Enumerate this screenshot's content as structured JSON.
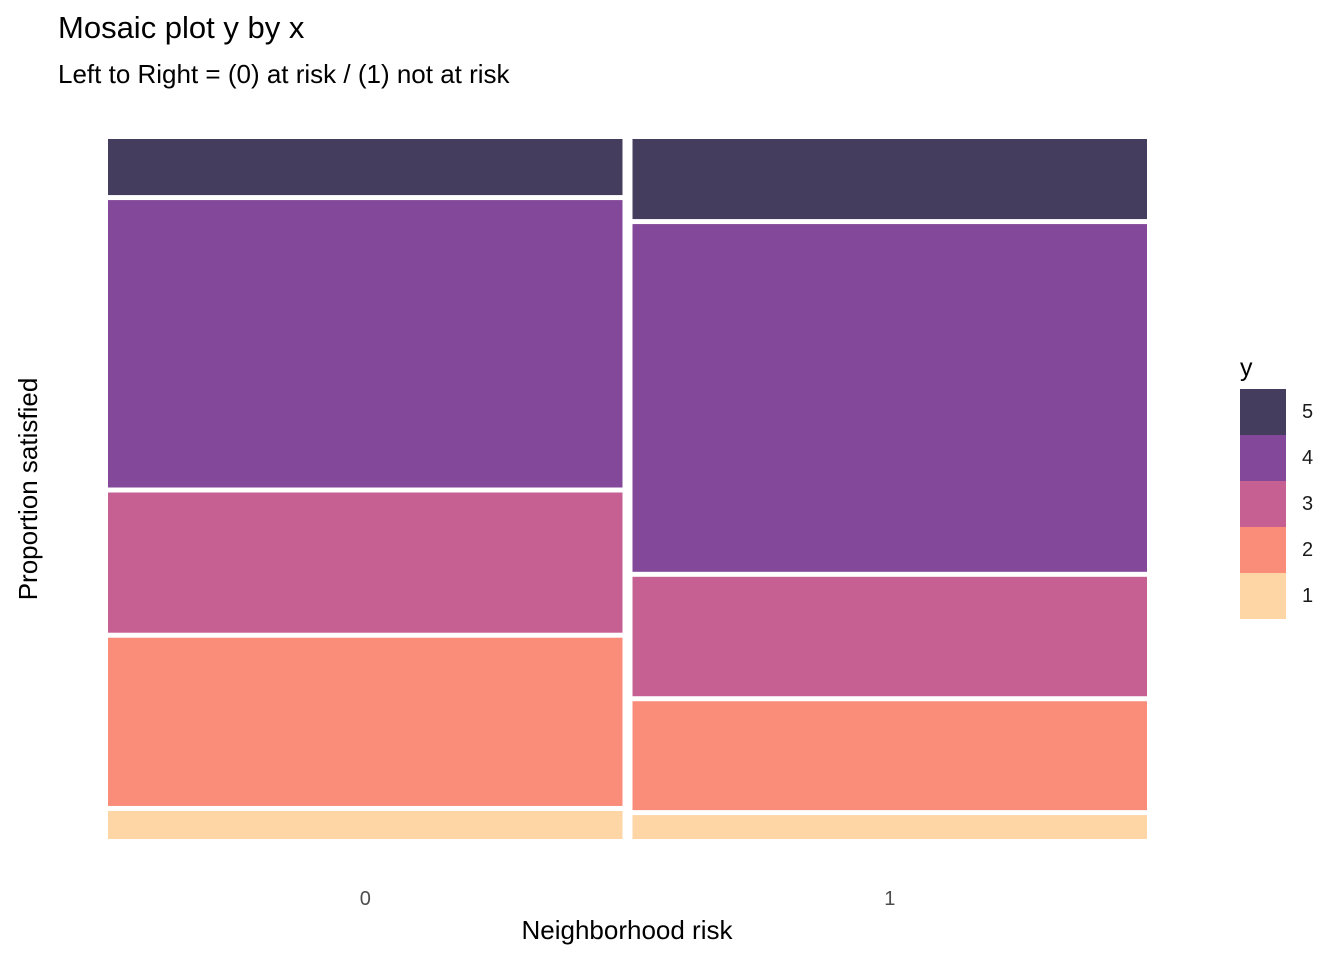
{
  "chart_data": {
    "type": "mosaic",
    "title": "Mosaic plot y by x",
    "subtitle": "Left to Right = (0) at risk / (1) not at risk",
    "xlabel": "Neighborhood risk",
    "ylabel": "Proportion satisfied",
    "categories": [
      "0",
      "1"
    ],
    "column_widths": [
      0.5,
      0.5
    ],
    "legend_title": "y",
    "legend_placement": "right",
    "grid": false,
    "levels": [
      "1",
      "2",
      "3",
      "4",
      "5"
    ],
    "colors": {
      "1": "#FED6A5",
      "2": "#FA8C7A",
      "3": "#C66093",
      "4": "#834899",
      "5": "#443D5E"
    },
    "series": [
      {
        "name": "1",
        "values": [
          0.04,
          0.034
        ]
      },
      {
        "name": "2",
        "values": [
          0.24,
          0.155
        ]
      },
      {
        "name": "3",
        "values": [
          0.2,
          0.17
        ]
      },
      {
        "name": "4",
        "values": [
          0.41,
          0.495
        ]
      },
      {
        "name": "5",
        "values": [
          0.08,
          0.114
        ]
      }
    ]
  }
}
